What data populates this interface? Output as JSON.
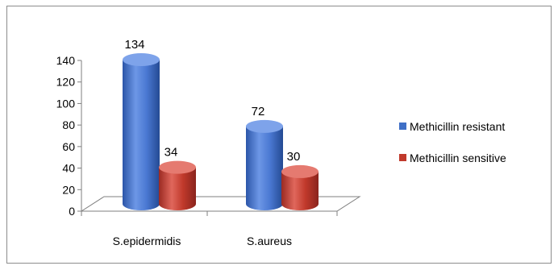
{
  "chart_data": {
    "type": "bar",
    "style": "3d-cylinder",
    "categories": [
      "S.epidermidis",
      "S.aureus"
    ],
    "series": [
      {
        "name": "Methicillin resistant",
        "values": [
          134,
          72
        ],
        "color": "#3f6fc6"
      },
      {
        "name": "Methicillin sensitive",
        "values": [
          34,
          30
        ],
        "color": "#c0392b"
      }
    ],
    "ylim": [
      0,
      140
    ],
    "yticks": [
      0,
      20,
      40,
      60,
      80,
      100,
      120,
      140
    ],
    "title": "",
    "xlabel": "",
    "ylabel": "",
    "legend_position": "right",
    "grid": false
  }
}
